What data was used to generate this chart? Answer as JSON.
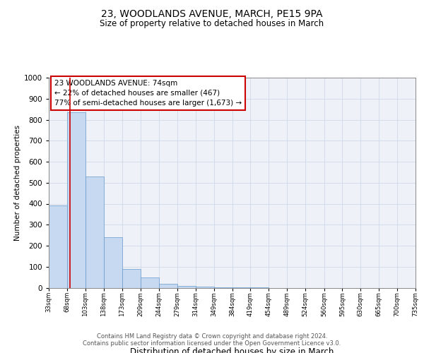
{
  "title": "23, WOODLANDS AVENUE, MARCH, PE15 9PA",
  "subtitle": "Size of property relative to detached houses in March",
  "xlabel": "Distribution of detached houses by size in March",
  "ylabel": "Number of detached properties",
  "annotation_line1": "23 WOODLANDS AVENUE: 74sqm",
  "annotation_line2": "← 22% of detached houses are smaller (467)",
  "annotation_line3": "77% of semi-detached houses are larger (1,673) →",
  "footer_line1": "Contains HM Land Registry data © Crown copyright and database right 2024.",
  "footer_line2": "Contains public sector information licensed under the Open Government Licence v3.0.",
  "property_size": 74,
  "bin_edges": [
    33,
    68,
    103,
    138,
    173,
    209,
    244,
    279,
    314,
    349,
    384,
    419,
    454,
    489,
    524,
    560,
    595,
    630,
    665,
    700,
    735
  ],
  "bar_heights": [
    390,
    835,
    530,
    240,
    90,
    50,
    20,
    10,
    5,
    3,
    2,
    1,
    0,
    0,
    0,
    0,
    0,
    0,
    0,
    0
  ],
  "bar_color": "#c6d9f0",
  "bar_edge_color": "#6699cc",
  "red_line_color": "#cc0000",
  "annotation_box_edgecolor": "#cc0000",
  "grid_color": "#d0d8e8",
  "background_color": "#ffffff",
  "plot_bg_color": "#eef2f8",
  "ylim": [
    0,
    1000
  ],
  "yticks": [
    0,
    100,
    200,
    300,
    400,
    500,
    600,
    700,
    800,
    900,
    1000
  ]
}
